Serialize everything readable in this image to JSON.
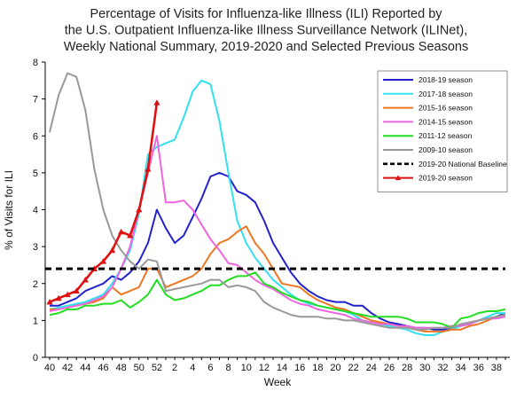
{
  "chart_data": {
    "type": "line",
    "title_lines": [
      "Percentage of Visits for Influenza-like Illness (ILI) Reported by",
      "the U.S. Outpatient Influenza-like Illness Surveillance Network (ILINet),",
      "Weekly National Summary, 2019-2020 and Selected Previous Seasons"
    ],
    "xlabel": "Week",
    "ylabel": "% of Visits for ILI",
    "ylim": [
      0,
      8
    ],
    "yticks": [
      "0",
      "1",
      "2",
      "3",
      "4",
      "5",
      "6",
      "7",
      "8"
    ],
    "x_week_ticks": [
      "40",
      "42",
      "44",
      "46",
      "48",
      "50",
      "52",
      "2",
      "4",
      "6",
      "8",
      "10",
      "12",
      "14",
      "16",
      "18",
      "20",
      "22",
      "24",
      "26",
      "28",
      "30",
      "32",
      "34",
      "36",
      "38"
    ],
    "x_weeks": [
      40,
      41,
      42,
      43,
      44,
      45,
      46,
      47,
      48,
      49,
      50,
      51,
      52,
      1,
      2,
      3,
      4,
      5,
      6,
      7,
      8,
      9,
      10,
      11,
      12,
      13,
      14,
      15,
      16,
      17,
      18,
      19,
      20,
      21,
      22,
      23,
      24,
      25,
      26,
      27,
      28,
      29,
      30,
      31,
      32,
      33,
      34,
      35,
      36,
      37,
      38,
      39
    ],
    "grid": false,
    "legend_position": "top-right",
    "baseline": {
      "name": "2019-20 National Baseline",
      "value": 2.4,
      "color": "#000000"
    },
    "series": [
      {
        "name": "2018-19 season",
        "color": "#2222cc",
        "values": [
          1.4,
          1.4,
          1.5,
          1.6,
          1.8,
          1.9,
          2.0,
          2.2,
          2.1,
          2.3,
          2.6,
          3.1,
          4.0,
          3.5,
          3.1,
          3.3,
          3.8,
          4.3,
          4.9,
          5.0,
          4.9,
          4.5,
          4.4,
          4.2,
          3.7,
          3.1,
          2.7,
          2.3,
          2.0,
          1.8,
          1.65,
          1.55,
          1.5,
          1.5,
          1.4,
          1.4,
          1.2,
          1.05,
          0.95,
          0.9,
          0.85,
          0.8,
          0.8,
          0.75,
          0.75,
          0.8,
          0.85,
          0.9,
          1.0,
          1.05,
          1.1,
          1.2
        ]
      },
      {
        "name": "2017-18 season",
        "color": "#33e0f0",
        "values": [
          1.3,
          1.35,
          1.4,
          1.45,
          1.5,
          1.6,
          1.7,
          2.0,
          2.4,
          2.9,
          3.9,
          5.5,
          5.7,
          5.8,
          5.9,
          6.5,
          7.2,
          7.5,
          7.4,
          6.4,
          5.0,
          3.7,
          3.1,
          2.7,
          2.4,
          2.1,
          1.9,
          1.7,
          1.55,
          1.45,
          1.4,
          1.35,
          1.3,
          1.25,
          1.15,
          1.0,
          0.95,
          0.9,
          0.85,
          0.8,
          0.75,
          0.65,
          0.6,
          0.6,
          0.7,
          0.75,
          0.85,
          0.9,
          1.0,
          1.1,
          1.2,
          1.2
        ]
      },
      {
        "name": "2015-16 season",
        "color": "#ee7722",
        "values": [
          1.3,
          1.3,
          1.35,
          1.4,
          1.45,
          1.5,
          1.6,
          1.9,
          1.7,
          1.8,
          1.9,
          2.4,
          2.4,
          1.9,
          2.0,
          2.1,
          2.2,
          2.4,
          2.8,
          3.1,
          3.2,
          3.4,
          3.55,
          3.1,
          2.8,
          2.4,
          2.0,
          1.95,
          1.9,
          1.7,
          1.55,
          1.45,
          1.35,
          1.3,
          1.2,
          1.1,
          1.0,
          0.95,
          0.9,
          0.85,
          0.8,
          0.75,
          0.7,
          0.7,
          0.7,
          0.75,
          0.75,
          0.85,
          0.9,
          1.0,
          1.1,
          1.15
        ]
      },
      {
        "name": "2014-15 season",
        "color": "#ee66dd",
        "values": [
          1.25,
          1.3,
          1.35,
          1.4,
          1.45,
          1.55,
          1.65,
          1.9,
          2.4,
          3.0,
          4.0,
          5.0,
          6.0,
          4.2,
          4.2,
          4.25,
          4.0,
          3.6,
          3.2,
          2.9,
          2.55,
          2.5,
          2.3,
          2.1,
          1.95,
          1.85,
          1.7,
          1.55,
          1.45,
          1.4,
          1.3,
          1.25,
          1.2,
          1.15,
          1.05,
          1.0,
          0.95,
          0.9,
          0.9,
          0.85,
          0.85,
          0.8,
          0.8,
          0.8,
          0.8,
          0.85,
          0.85,
          0.9,
          1.0,
          1.05,
          1.05,
          1.1
        ]
      },
      {
        "name": "2011-12 season",
        "color": "#22dd22",
        "values": [
          1.15,
          1.2,
          1.3,
          1.3,
          1.4,
          1.4,
          1.45,
          1.45,
          1.55,
          1.35,
          1.5,
          1.7,
          2.1,
          1.7,
          1.55,
          1.6,
          1.7,
          1.8,
          1.95,
          1.95,
          2.1,
          2.2,
          2.2,
          2.3,
          2.0,
          1.9,
          1.75,
          1.65,
          1.55,
          1.5,
          1.4,
          1.35,
          1.3,
          1.25,
          1.2,
          1.15,
          1.1,
          1.1,
          1.1,
          1.1,
          1.05,
          0.95,
          0.95,
          0.95,
          0.9,
          0.8,
          1.05,
          1.1,
          1.2,
          1.25,
          1.25,
          1.3
        ]
      },
      {
        "name": "2009-10 season",
        "color": "#999999",
        "values": [
          6.1,
          7.1,
          7.7,
          7.6,
          6.7,
          5.1,
          4.0,
          3.3,
          2.9,
          2.6,
          2.4,
          2.65,
          2.6,
          1.8,
          1.85,
          1.9,
          1.95,
          2.0,
          2.1,
          2.1,
          1.9,
          1.95,
          1.9,
          1.8,
          1.5,
          1.35,
          1.25,
          1.15,
          1.1,
          1.1,
          1.1,
          1.05,
          1.05,
          1.0,
          1.0,
          0.95,
          0.9,
          0.85,
          0.8,
          0.8,
          0.8,
          0.75,
          0.75,
          0.8,
          0.8,
          0.8,
          0.9,
          0.95,
          1.0,
          1.05,
          1.1,
          1.15
        ]
      },
      {
        "name": "2019-20 season",
        "color": "#dd1111",
        "markers": "triangle",
        "values": [
          1.5,
          1.6,
          1.7,
          1.8,
          2.1,
          2.4,
          2.6,
          2.9,
          3.4,
          3.3,
          4.0,
          5.1,
          6.9
        ]
      }
    ]
  }
}
